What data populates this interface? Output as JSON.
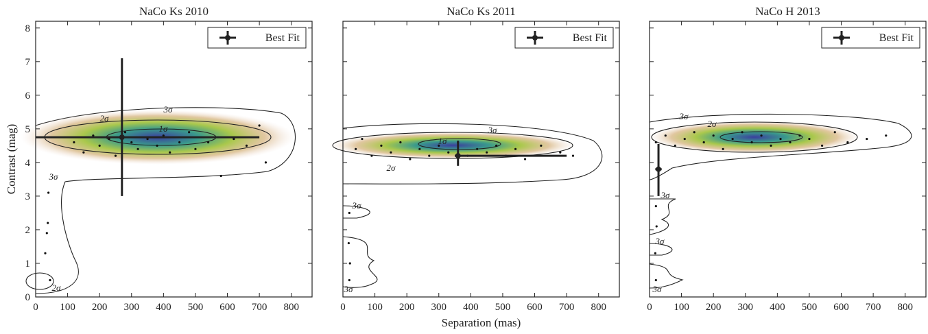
{
  "chart_data": [
    {
      "type": "scatter",
      "title": "NaCo Ks 2010",
      "ylabel": "Contrast (mag)",
      "xlim": [
        0,
        865
      ],
      "ylim": [
        0,
        8.2
      ],
      "xticks": [
        0,
        100,
        200,
        300,
        400,
        500,
        600,
        700,
        800
      ],
      "yticks": [
        0,
        1,
        2,
        3,
        4,
        5,
        6,
        7,
        8
      ],
      "points": {
        "x": [
          120,
          150,
          180,
          200,
          230,
          250,
          280,
          300,
          320,
          350,
          380,
          400,
          420,
          450,
          480,
          500,
          540,
          580,
          620,
          660,
          700,
          720,
          40,
          38,
          35,
          30,
          45
        ],
        "y": [
          4.6,
          4.3,
          4.8,
          4.5,
          4.7,
          4.2,
          4.9,
          4.6,
          4.4,
          4.7,
          4.5,
          4.8,
          4.3,
          4.6,
          4.9,
          4.4,
          4.6,
          3.6,
          4.7,
          4.5,
          5.1,
          4.0,
          3.1,
          2.2,
          1.9,
          1.3,
          0.5
        ]
      },
      "best_fit": {
        "name": "Best Fit",
        "x": 270,
        "y": 4.75,
        "xerr": [
          270,
          430
        ],
        "yerr": [
          1.75,
          2.35
        ]
      },
      "contour_labels": [
        "3σ",
        "2σ",
        "1σ",
        "3σ",
        "2σ"
      ]
    },
    {
      "type": "scatter",
      "title": "NaCo Ks 2011",
      "xlabel": "Separation (mas)",
      "xlim": [
        0,
        865
      ],
      "ylim": [
        0,
        8.2
      ],
      "xticks": [
        0,
        100,
        200,
        300,
        400,
        500,
        600,
        700,
        800
      ],
      "points": {
        "x": [
          40,
          60,
          90,
          120,
          150,
          180,
          210,
          240,
          270,
          300,
          330,
          360,
          390,
          420,
          450,
          480,
          510,
          540,
          570,
          620,
          680,
          720,
          20,
          18,
          22,
          20
        ],
        "y": [
          4.4,
          4.7,
          4.2,
          4.5,
          4.3,
          4.6,
          4.1,
          4.4,
          4.2,
          4.5,
          4.3,
          4.6,
          4.2,
          4.4,
          4.3,
          4.5,
          4.2,
          4.4,
          4.1,
          4.5,
          4.3,
          4.2,
          2.5,
          1.6,
          1.0,
          0.5
        ]
      },
      "best_fit": {
        "name": "Best Fit",
        "x": 360,
        "y": 4.2,
        "xerr": [
          10,
          340
        ],
        "yerr": [
          0.3,
          0.45
        ]
      },
      "contour_labels": [
        "3σ",
        "2σ",
        "1σ",
        "3σ",
        "3σ"
      ]
    },
    {
      "type": "scatter",
      "title": "NaCo H 2013",
      "xlim": [
        0,
        865
      ],
      "ylim": [
        0,
        8.2
      ],
      "xticks": [
        0,
        100,
        200,
        300,
        400,
        500,
        600,
        700,
        800
      ],
      "points": {
        "x": [
          20,
          50,
          80,
          110,
          140,
          170,
          200,
          230,
          260,
          290,
          320,
          350,
          380,
          410,
          440,
          470,
          500,
          540,
          580,
          620,
          680,
          740,
          20,
          22,
          18,
          20
        ],
        "y": [
          4.6,
          4.8,
          4.5,
          4.7,
          4.9,
          4.6,
          4.8,
          4.4,
          4.7,
          4.9,
          4.6,
          4.8,
          4.5,
          4.7,
          4.6,
          4.8,
          4.7,
          4.5,
          4.9,
          4.6,
          4.7,
          4.8,
          2.7,
          2.1,
          1.3,
          0.5
        ]
      },
      "best_fit": {
        "name": "Best Fit",
        "x": 28,
        "y": 3.8,
        "xerr": [
          10,
          10
        ],
        "yerr": [
          0.8,
          0.75
        ]
      },
      "contour_labels": [
        "3σ",
        "2σ",
        "3σ",
        "3σ",
        "3σ"
      ]
    }
  ]
}
